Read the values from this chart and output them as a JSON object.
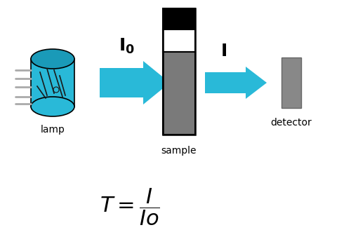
{
  "bg_color": "#ffffff",
  "cyan_color": "#29B9D8",
  "lamp_label": "lamp",
  "arrow1_label": "$\\mathbf{I_0}$",
  "arrow2_label": "$\\mathbf{I}$",
  "sample_label": "sample",
  "detector_label": "detector",
  "black": "#000000",
  "white": "#ffffff",
  "tube_gray": "#7a7a7a",
  "tube_dark_gray": "#555555",
  "detector_gray": "#888888",
  "pin_color": "#aaaaaa",
  "filament_color": "#1a1a1a"
}
